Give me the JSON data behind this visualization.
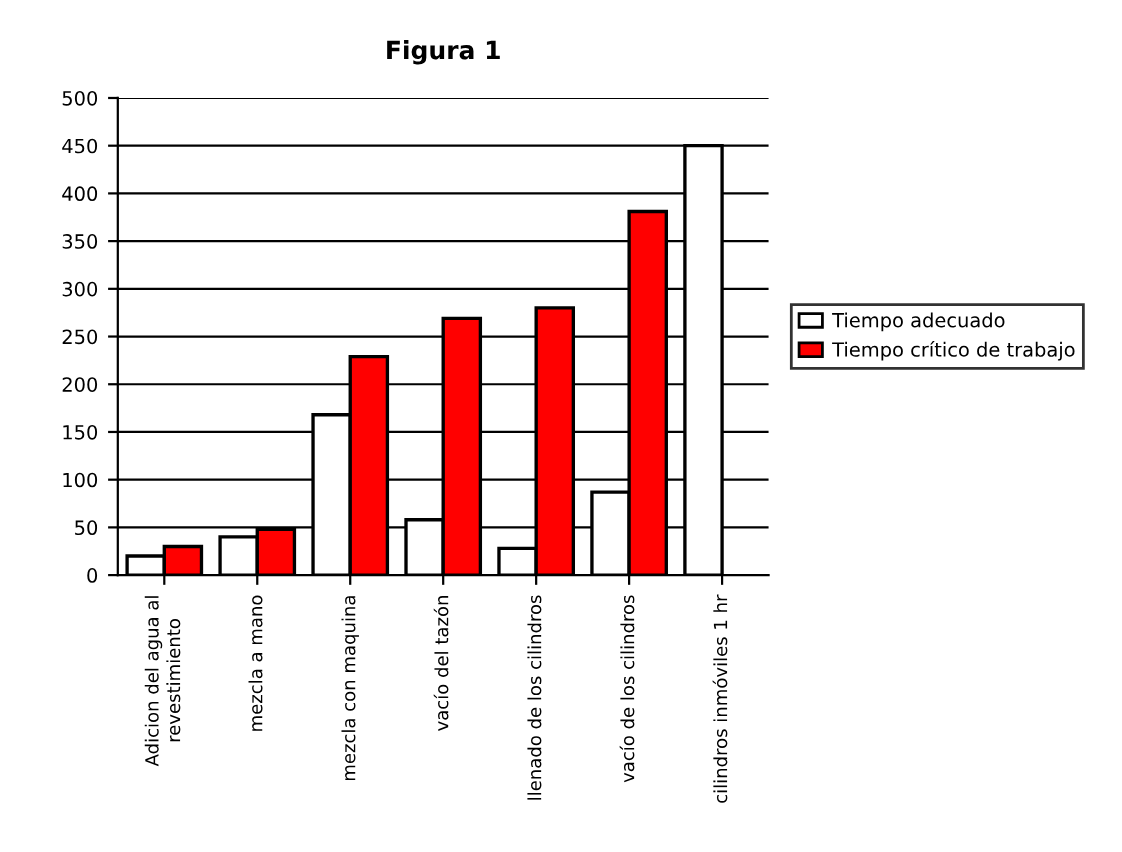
{
  "chart_data": {
    "type": "bar",
    "title": "Figura 1",
    "categories": [
      "Adicion del agua al\nrevestimiento",
      "mezcla a mano",
      "mezcla con maquina",
      "vacío del tazón",
      "llenado de los cilindros",
      "vacío de los cilindros",
      "cilindros inmóviles 1 hr"
    ],
    "series": [
      {
        "name": "Tiempo adecuado",
        "color": "#ffffff",
        "values": [
          20,
          40,
          168,
          58,
          28,
          87,
          450
        ]
      },
      {
        "name": "Tiempo crítico de trabajo",
        "color": "#ff0000",
        "values": [
          30,
          48,
          229,
          269,
          280,
          381,
          null
        ]
      }
    ],
    "ylim": [
      0,
      500
    ],
    "yticks": [
      0,
      50,
      100,
      150,
      200,
      250,
      300,
      350,
      400,
      450,
      500
    ],
    "grid": "y",
    "legend": "right"
  }
}
